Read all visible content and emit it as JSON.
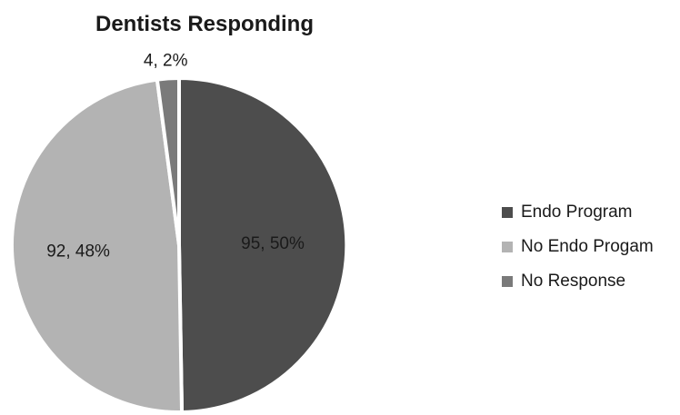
{
  "chart_data": {
    "type": "pie",
    "title": "Dentists Responding",
    "categories": [
      "Endo Program",
      "No Endo Progam",
      "No Response"
    ],
    "values": [
      95,
      92,
      4
    ],
    "data_labels": [
      "95, 50%",
      "92, 48%",
      "4, 2%"
    ],
    "colors": [
      "#4d4d4d",
      "#b3b3b3",
      "#7a7a7a"
    ],
    "legend_position": "right"
  }
}
